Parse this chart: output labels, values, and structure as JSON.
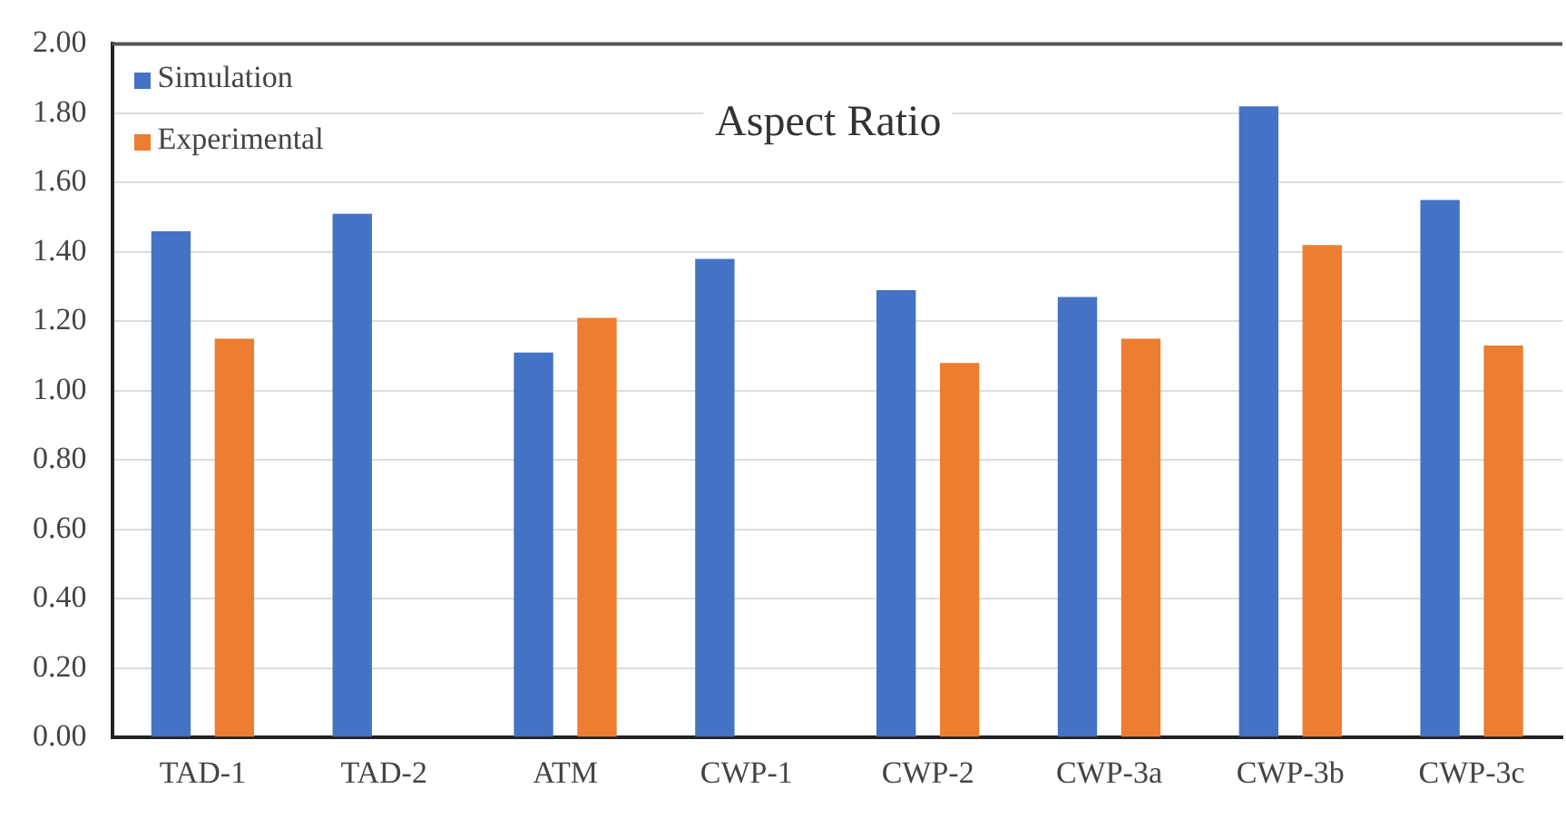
{
  "chart_data": {
    "type": "bar",
    "title": "Aspect Ratio",
    "categories": [
      "TAD-1",
      "TAD-2",
      "ATM",
      "CWP-1",
      "CWP-2",
      "CWP-3a",
      "CWP-3b",
      "CWP-3c"
    ],
    "series": [
      {
        "name": "Simulation",
        "color": "#4472c4",
        "values": [
          1.46,
          1.51,
          1.11,
          1.38,
          1.29,
          1.27,
          1.82,
          1.55
        ]
      },
      {
        "name": "Experimental",
        "color": "#ed7d31",
        "values": [
          1.15,
          null,
          1.21,
          null,
          1.08,
          1.15,
          1.42,
          1.13
        ]
      }
    ],
    "ylim": [
      0,
      2
    ],
    "yticks": [
      {
        "value": 0,
        "label": "0.00"
      },
      {
        "value": 0.2,
        "label": "0.20"
      },
      {
        "value": 0.4,
        "label": "0.40"
      },
      {
        "value": 0.6,
        "label": "0.60"
      },
      {
        "value": 0.8,
        "label": "0.80"
      },
      {
        "value": 1,
        "label": "1.00"
      },
      {
        "value": 1.2,
        "label": "1.20"
      },
      {
        "value": 1.4,
        "label": "1.40"
      },
      {
        "value": 1.6,
        "label": "1.60"
      },
      {
        "value": 1.8,
        "label": "1.80"
      },
      {
        "value": 2,
        "label": "2.00"
      }
    ],
    "grid": "y",
    "legend": "top left"
  }
}
